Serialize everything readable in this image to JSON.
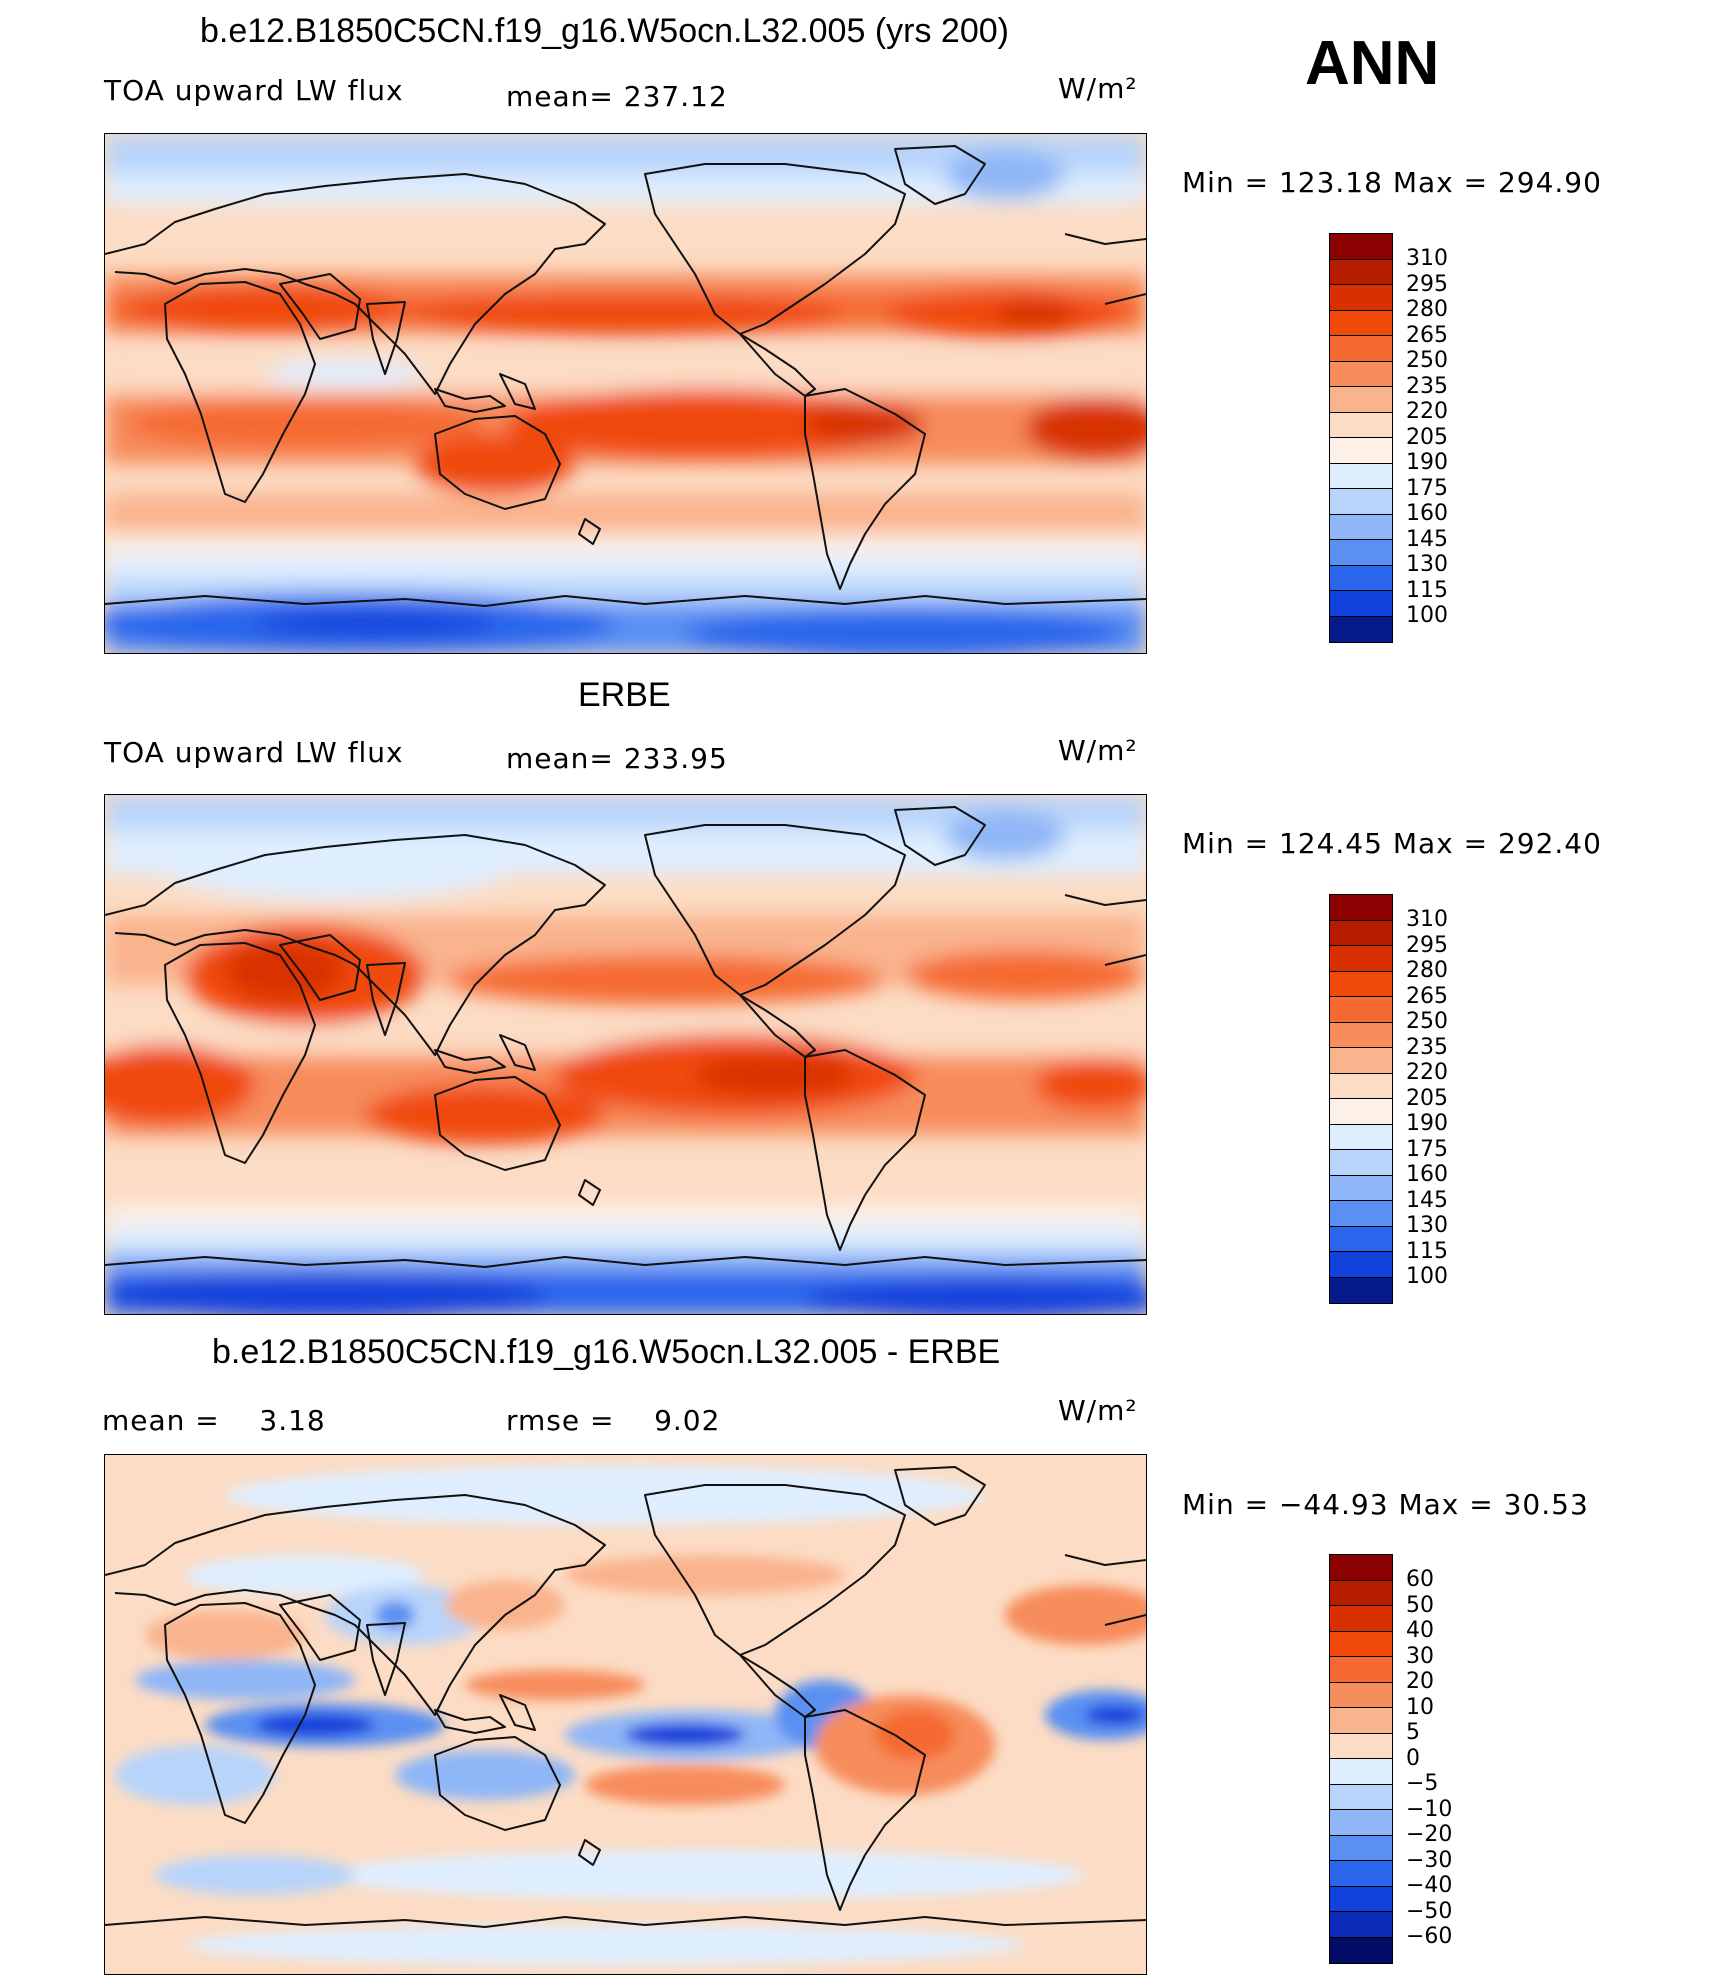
{
  "header": {
    "run_title": "b.e12.B1850C5CN.f19_g16.W5ocn.L32.005 (yrs 200)",
    "season": "ANN"
  },
  "panels": [
    {
      "title": "",
      "field": "TOA upward LW flux",
      "mean_label": "mean=",
      "mean_value": "237.12",
      "units": "W/m²",
      "minmax": "Min  =  123.18  Max  =  294.90",
      "levels": [
        "310",
        "295",
        "280",
        "265",
        "250",
        "235",
        "220",
        "205",
        "190",
        "175",
        "160",
        "145",
        "130",
        "115",
        "100"
      ]
    },
    {
      "title": "ERBE",
      "field": "TOA upward LW flux",
      "mean_label": "mean=",
      "mean_value": "233.95",
      "units": "W/m²",
      "minmax": "Min  =  124.45  Max  =  292.40",
      "levels": [
        "310",
        "295",
        "280",
        "265",
        "250",
        "235",
        "220",
        "205",
        "190",
        "175",
        "160",
        "145",
        "130",
        "115",
        "100"
      ]
    },
    {
      "title": "b.e12.B1850C5CN.f19_g16.W5ocn.L32.005 - ERBE",
      "mean_label": "mean  =",
      "mean_value": "3.18",
      "rmse_label": "rmse  =",
      "rmse_value": "9.02",
      "units": "W/m²",
      "minmax": "Min  =  −44.93  Max  =    30.53",
      "levels": [
        "60",
        "50",
        "40",
        "30",
        "20",
        "10",
        "5",
        "0",
        "−5",
        "−10",
        "−20",
        "−30",
        "−40",
        "−50",
        "−60"
      ]
    }
  ],
  "colors": {
    "scale": [
      "#8b0000",
      "#b51c00",
      "#d83000",
      "#f04a0a",
      "#f56a30",
      "#f78c5c",
      "#f9b48e",
      "#fcdcc4",
      "#fdf0e6",
      "#dfeeff",
      "#b8d4fa",
      "#8fb6f6",
      "#5a90f2",
      "#2a66ec",
      "#1242dc",
      "#0b2bb8",
      "#061a8e",
      "#020c66"
    ],
    "diff_scale": [
      "#8b0000",
      "#b51c00",
      "#d83000",
      "#f04a0a",
      "#f56a30",
      "#f78c5c",
      "#f9b48e",
      "#fcdcc4",
      "#dfeeff",
      "#b8d4fa",
      "#8fb6f6",
      "#5a90f2",
      "#2a66ec",
      "#1242dc",
      "#0b2bb8",
      "#061a8e",
      "#020c66"
    ]
  }
}
